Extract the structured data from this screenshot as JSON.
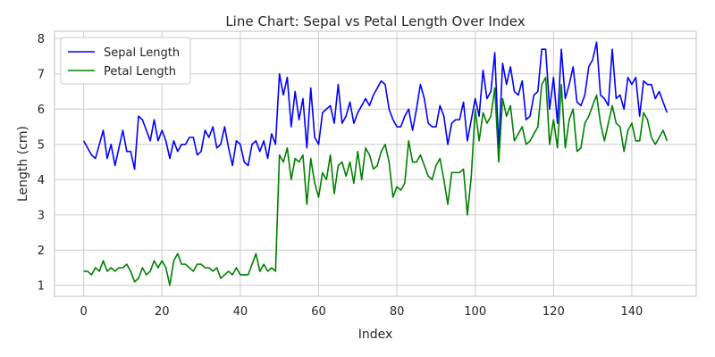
{
  "chart_data": {
    "type": "line",
    "title": "Line Chart: Sepal vs Petal Length Over Index",
    "xlabel": "Index",
    "ylabel": "Length (cm)",
    "xlim": [
      -7.45,
      156.45
    ],
    "ylim": [
      0.69,
      8.21
    ],
    "xticks": [
      0,
      20,
      40,
      60,
      80,
      100,
      120,
      140
    ],
    "yticks": [
      1,
      2,
      3,
      4,
      5,
      6,
      7,
      8
    ],
    "grid": true,
    "legend_position": "top-left",
    "x": [
      0,
      1,
      2,
      3,
      4,
      5,
      6,
      7,
      8,
      9,
      10,
      11,
      12,
      13,
      14,
      15,
      16,
      17,
      18,
      19,
      20,
      21,
      22,
      23,
      24,
      25,
      26,
      27,
      28,
      29,
      30,
      31,
      32,
      33,
      34,
      35,
      36,
      37,
      38,
      39,
      40,
      41,
      42,
      43,
      44,
      45,
      46,
      47,
      48,
      49,
      50,
      51,
      52,
      53,
      54,
      55,
      56,
      57,
      58,
      59,
      60,
      61,
      62,
      63,
      64,
      65,
      66,
      67,
      68,
      69,
      70,
      71,
      72,
      73,
      74,
      75,
      76,
      77,
      78,
      79,
      80,
      81,
      82,
      83,
      84,
      85,
      86,
      87,
      88,
      89,
      90,
      91,
      92,
      93,
      94,
      95,
      96,
      97,
      98,
      99,
      100,
      101,
      102,
      103,
      104,
      105,
      106,
      107,
      108,
      109,
      110,
      111,
      112,
      113,
      114,
      115,
      116,
      117,
      118,
      119,
      120,
      121,
      122,
      123,
      124,
      125,
      126,
      127,
      128,
      129,
      130,
      131,
      132,
      133,
      134,
      135,
      136,
      137,
      138,
      139,
      140,
      141,
      142,
      143,
      144,
      145,
      146,
      147,
      148,
      149
    ],
    "series": [
      {
        "name": "Sepal Length",
        "color": "#0000ff",
        "values": [
          5.1,
          4.9,
          4.7,
          4.6,
          5.0,
          5.4,
          4.6,
          5.0,
          4.4,
          4.9,
          5.4,
          4.8,
          4.8,
          4.3,
          5.8,
          5.7,
          5.4,
          5.1,
          5.7,
          5.1,
          5.4,
          5.1,
          4.6,
          5.1,
          4.8,
          5.0,
          5.0,
          5.2,
          5.2,
          4.7,
          4.8,
          5.4,
          5.2,
          5.5,
          4.9,
          5.0,
          5.5,
          4.9,
          4.4,
          5.1,
          5.0,
          4.5,
          4.4,
          5.0,
          5.1,
          4.8,
          5.1,
          4.6,
          5.3,
          5.0,
          7.0,
          6.4,
          6.9,
          5.5,
          6.5,
          5.7,
          6.3,
          4.9,
          6.6,
          5.2,
          5.0,
          5.9,
          6.0,
          6.1,
          5.6,
          6.7,
          5.6,
          5.8,
          6.2,
          5.6,
          5.9,
          6.1,
          6.3,
          6.1,
          6.4,
          6.6,
          6.8,
          6.7,
          6.0,
          5.7,
          5.5,
          5.5,
          5.8,
          6.0,
          5.4,
          6.0,
          6.7,
          6.3,
          5.6,
          5.5,
          5.5,
          6.1,
          5.8,
          5.0,
          5.6,
          5.7,
          5.7,
          6.2,
          5.1,
          5.7,
          6.3,
          5.8,
          7.1,
          6.3,
          6.5,
          7.6,
          4.9,
          7.3,
          6.7,
          7.2,
          6.5,
          6.4,
          6.8,
          5.7,
          5.8,
          6.4,
          6.5,
          7.7,
          7.7,
          6.0,
          6.9,
          5.6,
          7.7,
          6.3,
          6.7,
          7.2,
          6.2,
          6.1,
          6.4,
          7.2,
          7.4,
          7.9,
          6.4,
          6.3,
          6.1,
          7.7,
          6.3,
          6.4,
          6.0,
          6.9,
          6.7,
          6.9,
          5.8,
          6.8,
          6.7,
          6.7,
          6.3,
          6.5,
          6.2,
          5.9
        ]
      },
      {
        "name": "Petal Length",
        "color": "#008000",
        "values": [
          1.4,
          1.4,
          1.3,
          1.5,
          1.4,
          1.7,
          1.4,
          1.5,
          1.4,
          1.5,
          1.5,
          1.6,
          1.4,
          1.1,
          1.2,
          1.5,
          1.3,
          1.4,
          1.7,
          1.5,
          1.7,
          1.5,
          1.0,
          1.7,
          1.9,
          1.6,
          1.6,
          1.5,
          1.4,
          1.6,
          1.6,
          1.5,
          1.5,
          1.4,
          1.5,
          1.2,
          1.3,
          1.4,
          1.3,
          1.5,
          1.3,
          1.3,
          1.3,
          1.6,
          1.9,
          1.4,
          1.6,
          1.4,
          1.5,
          1.4,
          4.7,
          4.5,
          4.9,
          4.0,
          4.6,
          4.5,
          4.7,
          3.3,
          4.6,
          3.9,
          3.5,
          4.2,
          4.0,
          4.7,
          3.6,
          4.4,
          4.5,
          4.1,
          4.5,
          3.9,
          4.8,
          4.0,
          4.9,
          4.7,
          4.3,
          4.4,
          4.8,
          5.0,
          4.5,
          3.5,
          3.8,
          3.7,
          3.9,
          5.1,
          4.5,
          4.5,
          4.7,
          4.4,
          4.1,
          4.0,
          4.4,
          4.6,
          4.0,
          3.3,
          4.2,
          4.2,
          4.2,
          4.3,
          3.0,
          4.1,
          6.0,
          5.1,
          5.9,
          5.6,
          5.8,
          6.6,
          4.5,
          6.3,
          5.8,
          6.1,
          5.1,
          5.3,
          5.5,
          5.0,
          5.1,
          5.3,
          5.5,
          6.7,
          6.9,
          5.0,
          5.7,
          4.9,
          6.7,
          4.9,
          5.7,
          6.0,
          4.8,
          4.9,
          5.6,
          5.8,
          6.1,
          6.4,
          5.6,
          5.1,
          5.6,
          6.1,
          5.6,
          5.5,
          4.8,
          5.4,
          5.6,
          5.1,
          5.1,
          5.9,
          5.7,
          5.2,
          5.0,
          5.2,
          5.4,
          5.1
        ]
      }
    ]
  }
}
